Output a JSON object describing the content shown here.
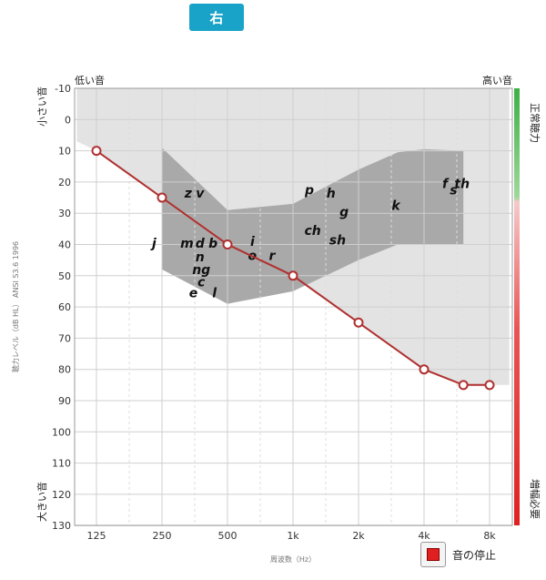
{
  "ear_tab": {
    "label": "右"
  },
  "stop_button": {
    "label": "音の停止"
  },
  "colors": {
    "line": "#b03030",
    "band_light": "#e3e3e3",
    "band_dark": "#a9a9a9",
    "normal": "#3cb043",
    "loss": "#e02020",
    "accent": "#1aa3c8"
  },
  "chart_data": {
    "type": "line",
    "title": "",
    "x_top_left": "低い音",
    "x_top_right": "高い音",
    "y_top_label": "小さい音",
    "y_bottom_label": "大きい音",
    "ylabel": "聴力レベル（dB HL） ANSI S3.6 1996",
    "xlabel": "周波数（Hz）",
    "right_top_label": "正常聴力",
    "right_bottom_label": "増幅必要",
    "ylim": [
      -10,
      130
    ],
    "y_ticks": [
      -10,
      0,
      10,
      20,
      30,
      40,
      50,
      60,
      70,
      80,
      90,
      100,
      110,
      120,
      130
    ],
    "x_ticks": [
      {
        "label": "125",
        "octave": 0
      },
      {
        "label": "250",
        "octave": 1
      },
      {
        "label": "500",
        "octave": 2
      },
      {
        "label": "1k",
        "octave": 3
      },
      {
        "label": "2k",
        "octave": 4
      },
      {
        "label": "4k",
        "octave": 5
      },
      {
        "label": "8k",
        "octave": 6
      }
    ],
    "series": [
      {
        "name": "右",
        "points": [
          {
            "octave": 0,
            "db": 10
          },
          {
            "octave": 1,
            "db": 25
          },
          {
            "octave": 2,
            "db": 40
          },
          {
            "octave": 3,
            "db": 50
          },
          {
            "octave": 4,
            "db": 65
          },
          {
            "octave": 5,
            "db": 80
          },
          {
            "octave": 5.6,
            "db": 85
          },
          {
            "octave": 6,
            "db": 85
          }
        ]
      }
    ],
    "region_light": [
      {
        "octave": -0.3,
        "db": -10
      },
      {
        "octave": 6.3,
        "db": -10
      },
      {
        "octave": 6.3,
        "db": 85
      },
      {
        "octave": 5.6,
        "db": 85
      },
      {
        "octave": 5,
        "db": 80
      },
      {
        "octave": 4,
        "db": 65
      },
      {
        "octave": 3,
        "db": 50
      },
      {
        "octave": 2,
        "db": 40
      },
      {
        "octave": 1,
        "db": 25
      },
      {
        "octave": 0,
        "db": 10
      },
      {
        "octave": -0.3,
        "db": 7
      }
    ],
    "speech_banana": [
      {
        "octave": 1,
        "db": 9
      },
      {
        "octave": 2,
        "db": 29
      },
      {
        "octave": 3,
        "db": 27
      },
      {
        "octave": 4,
        "db": 16
      },
      {
        "octave": 4.6,
        "db": 10.5
      },
      {
        "octave": 5,
        "db": 9.5
      },
      {
        "octave": 5.6,
        "db": 10
      },
      {
        "octave": 5.6,
        "db": 40
      },
      {
        "octave": 4.6,
        "db": 40
      },
      {
        "octave": 4,
        "db": 45
      },
      {
        "octave": 3,
        "db": 55
      },
      {
        "octave": 2,
        "db": 59
      },
      {
        "octave": 1,
        "db": 48
      }
    ],
    "phonemes": [
      {
        "text": "z",
        "octave": 1.4,
        "db": 23.5
      },
      {
        "text": "v",
        "octave": 1.58,
        "db": 23.5
      },
      {
        "text": "p",
        "octave": 3.25,
        "db": 22.5
      },
      {
        "text": "h",
        "octave": 3.58,
        "db": 23.5
      },
      {
        "text": "g",
        "octave": 3.78,
        "db": 29.5
      },
      {
        "text": "k",
        "octave": 4.57,
        "db": 27.5
      },
      {
        "text": "f",
        "octave": 5.32,
        "db": 20.5
      },
      {
        "text": "s",
        "octave": 5.45,
        "db": 22.5
      },
      {
        "text": "th",
        "octave": 5.58,
        "db": 20.5
      },
      {
        "text": "ch",
        "octave": 3.3,
        "db": 35.5
      },
      {
        "text": "sh",
        "octave": 3.68,
        "db": 38.5
      },
      {
        "text": "j",
        "octave": 0.88,
        "db": 39.5
      },
      {
        "text": "m",
        "octave": 1.38,
        "db": 39.5
      },
      {
        "text": "d",
        "octave": 1.58,
        "db": 39.5
      },
      {
        "text": "b",
        "octave": 1.78,
        "db": 39.5
      },
      {
        "text": "i",
        "octave": 2.38,
        "db": 39
      },
      {
        "text": "o",
        "octave": 2.38,
        "db": 43.5
      },
      {
        "text": "r",
        "octave": 2.68,
        "db": 43.5
      },
      {
        "text": "n",
        "octave": 1.58,
        "db": 44
      },
      {
        "text": "ng",
        "octave": 1.6,
        "db": 48
      },
      {
        "text": "c",
        "octave": 1.6,
        "db": 52
      },
      {
        "text": "e",
        "octave": 1.48,
        "db": 55.5
      },
      {
        "text": "l",
        "octave": 1.8,
        "db": 55.5
      }
    ]
  }
}
